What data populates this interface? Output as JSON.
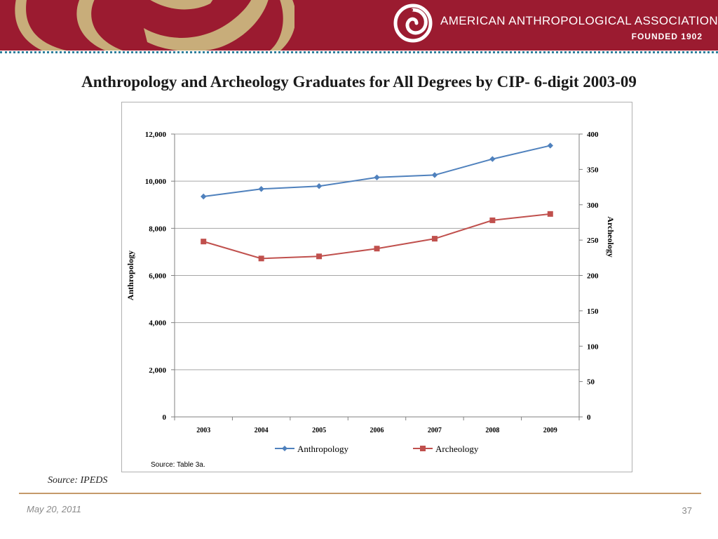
{
  "header": {
    "org_name": "AMERICAN ANTHROPOLOGICAL ASSOCIATION",
    "founded": "FOUNDED 1902",
    "colors": {
      "banner": "#9b1b30",
      "banner_art": "#c8ad7a",
      "divider": "#2e7f9c"
    }
  },
  "slide": {
    "title": "Anthropology and Archeology Graduates for All Degrees by CIP- 6-digit 2003-09",
    "source": "Source: IPEDS",
    "chart_source_note": "Source: Table 3a.",
    "footer_date": "May 20, 2011",
    "page_number": "37"
  },
  "chart_data": {
    "type": "line",
    "title": "",
    "categories": [
      "2003",
      "2004",
      "2005",
      "2006",
      "2007",
      "2008",
      "2009"
    ],
    "ylabel": "Anthropology",
    "ylabel_right": "Archeology",
    "ylim": [
      0,
      12000
    ],
    "ylim_right": [
      0,
      400
    ],
    "yticks": [
      "0",
      "2,000",
      "4,000",
      "6,000",
      "8,000",
      "10,000",
      "12,000"
    ],
    "yticks_right": [
      "0",
      "50",
      "100",
      "150",
      "200",
      "250",
      "300",
      "350",
      "400"
    ],
    "grid": true,
    "legend_position": "bottom",
    "series": [
      {
        "name": "Anthropology",
        "axis": "left",
        "color": "#4f81bd",
        "marker": "diamond",
        "values": [
          9350,
          9670,
          9790,
          10160,
          10260,
          10940,
          11510
        ]
      },
      {
        "name": "Archeology",
        "axis": "right",
        "color": "#c0504d",
        "marker": "square",
        "values": [
          248,
          224,
          227,
          238,
          252,
          278,
          287
        ]
      }
    ]
  }
}
